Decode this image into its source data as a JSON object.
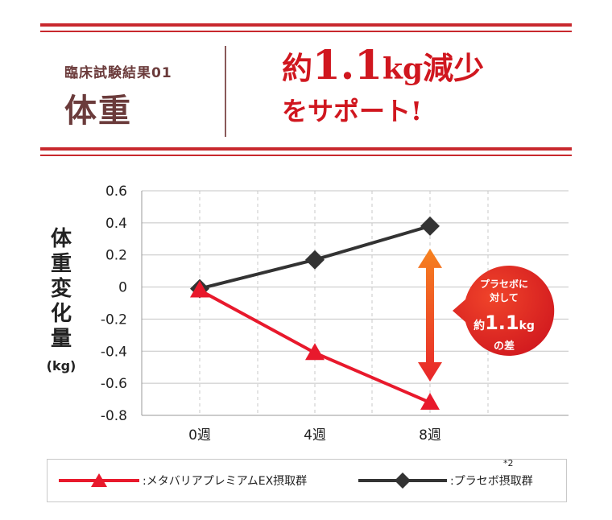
{
  "header": {
    "subtitle": "臨床試験結果01",
    "title": "体重",
    "headline_prefix": "約",
    "headline_value": "1.1",
    "headline_unit": "kg",
    "headline_suffix": "減少",
    "headline_line2": "をサポート!"
  },
  "callout": {
    "line1": "プラセボに",
    "line2": "対して",
    "prefix": "約",
    "value": "1.1",
    "unit": "kg",
    "line4": "の差"
  },
  "legend": {
    "item1": ":メタバリアプレミアムEX摂取群",
    "item2": ":プラセボ摂取群",
    "item2_note": "*2"
  },
  "chart_data": {
    "type": "line",
    "ylabel": "体重変化量",
    "ylabel_unit": "(kg)",
    "categories": [
      "0週",
      "4週",
      "8週"
    ],
    "yticks": [
      "0.6",
      "0.4",
      "0.2",
      "0",
      "-0.2",
      "-0.4",
      "-0.6",
      "-0.8"
    ],
    "ylim": [
      -0.8,
      0.6
    ],
    "grid": true,
    "series": [
      {
        "name": "メタバリアプレミアムEX摂取群",
        "values": [
          -0.02,
          -0.41,
          -0.72
        ],
        "color": "#e8192c",
        "marker": "triangle"
      },
      {
        "name": "プラセボ摂取群",
        "values": [
          -0.01,
          0.17,
          0.38
        ],
        "color": "#333333",
        "marker": "diamond"
      }
    ],
    "arrow_color": "#f04a1a"
  }
}
